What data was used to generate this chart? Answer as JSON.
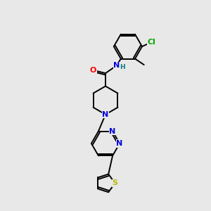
{
  "background_color": "#e8e8e8",
  "figure_size": [
    3.0,
    3.0
  ],
  "dpi": 100,
  "bond_color": "#000000",
  "bond_width": 1.4,
  "atom_colors": {
    "N_blue": "#0000dd",
    "O_red": "#ff0000",
    "Cl_green": "#00aa00",
    "S_yellow": "#bbbb00",
    "H_teal": "#008080"
  },
  "font_size_atoms": 8,
  "font_size_small": 6.5,
  "xlim": [
    0,
    8
  ],
  "ylim": [
    0,
    12
  ]
}
